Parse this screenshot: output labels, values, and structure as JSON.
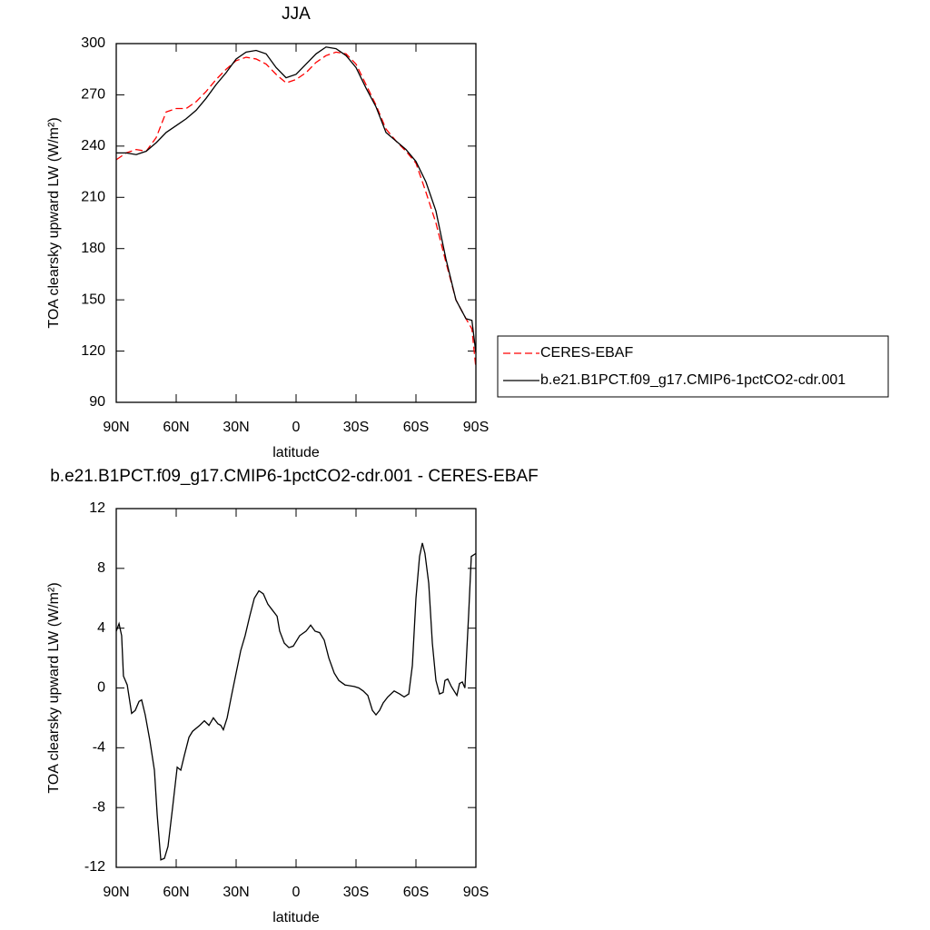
{
  "chart_data": [
    {
      "type": "line",
      "title": "JJA",
      "x_label": "latitude",
      "y_label": "TOA clearsky upward LW (W/m²)",
      "x": [
        90,
        85,
        80,
        75,
        70,
        65,
        60,
        55,
        50,
        45,
        40,
        35,
        30,
        25,
        20,
        15,
        10,
        5,
        0,
        -5,
        -10,
        -15,
        -20,
        -25,
        -30,
        -35,
        -40,
        -45,
        -50,
        -55,
        -60,
        -65,
        -70,
        -75,
        -80,
        -85,
        -88,
        -90
      ],
      "series": [
        {
          "name": "CERES-EBAF",
          "color": "#ff0000",
          "dash": true,
          "values": [
            232,
            236,
            238,
            237,
            245,
            260,
            262,
            262,
            266,
            272,
            279,
            285,
            290,
            292,
            291,
            288,
            282,
            277,
            279,
            283,
            289,
            293,
            295,
            294,
            288,
            276,
            264,
            250,
            243,
            237,
            230,
            213,
            195,
            172,
            150,
            139,
            133,
            110
          ]
        },
        {
          "name": "b.e21.B1PCT.f09_g17.CMIP6-1pctCO2-cdr.001",
          "color": "#000000",
          "dash": false,
          "values": [
            236,
            236,
            235,
            237,
            242,
            248,
            252,
            256,
            261,
            268,
            276,
            283,
            291,
            295,
            296,
            294,
            286,
            280,
            282,
            288,
            294,
            298,
            297,
            293,
            286,
            274,
            263,
            248,
            243,
            238,
            231,
            219,
            202,
            174,
            150,
            139,
            138,
            119
          ]
        }
      ],
      "xlim": [
        90,
        -90
      ],
      "xticks": [
        {
          "value": 90,
          "label": "90N"
        },
        {
          "value": 60,
          "label": "60N"
        },
        {
          "value": 30,
          "label": "30N"
        },
        0,
        {
          "value": -30,
          "label": "30S"
        },
        {
          "value": -60,
          "label": "60S"
        },
        {
          "value": -90,
          "label": "90S"
        }
      ],
      "ylim": [
        90,
        300
      ],
      "yticks": [
        90,
        120,
        150,
        180,
        210,
        240,
        270,
        300
      ],
      "legend": "right"
    },
    {
      "type": "line",
      "title": "b.e21.B1PCT.f09_g17.CMIP6-1pctCO2-cdr.001 - CERES-EBAF",
      "x_label": "latitude",
      "y_label": "TOA clearsky upward LW (W/m²)",
      "x": [
        90,
        88.6,
        87.3,
        86.4,
        84.5,
        82.3,
        80.5,
        78.6,
        77.3,
        75.5,
        73.2,
        70.9,
        69.5,
        67.7,
        65.9,
        64.1,
        61.8,
        59.5,
        57.7,
        55.9,
        53.6,
        51.8,
        48.2,
        45.9,
        43.6,
        41.4,
        39.1,
        37.7,
        36.4,
        34.5,
        32.3,
        30,
        27.7,
        25.5,
        23.2,
        20.9,
        18.6,
        16.4,
        14.1,
        11.8,
        9.5,
        8.2,
        5.9,
        3.6,
        1.4,
        -1.8,
        -5,
        -7.3,
        -9.5,
        -11.8,
        -14.1,
        -16.4,
        -19.1,
        -21.4,
        -24.5,
        -29.1,
        -31.4,
        -33.6,
        -35.9,
        -38.2,
        -40,
        -41.8,
        -43.6,
        -45.9,
        -49.1,
        -51.8,
        -54.1,
        -56.4,
        -58.2,
        -60,
        -61.8,
        -63.2,
        -64.5,
        -66.4,
        -68.2,
        -70,
        -71.8,
        -73.6,
        -74.5,
        -75.9,
        -77.7,
        -79.1,
        -80.5,
        -81.8,
        -83.2,
        -84.5,
        -86.4,
        -87.7,
        -90
      ],
      "values": [
        3.8,
        4.3,
        3.5,
        0.8,
        0.2,
        -1.7,
        -1.5,
        -0.9,
        -0.8,
        -1.8,
        -3.5,
        -5.5,
        -8.5,
        -11.5,
        -11.4,
        -10.6,
        -8,
        -5.3,
        -5.5,
        -4.5,
        -3.3,
        -2.9,
        -2.5,
        -2.2,
        -2.5,
        -2,
        -2.4,
        -2.5,
        -2.8,
        -2,
        -0.5,
        1,
        2.5,
        3.5,
        4.8,
        6,
        6.5,
        6.3,
        5.6,
        5.2,
        4.8,
        3.8,
        3,
        2.7,
        2.8,
        3.5,
        3.8,
        4.2,
        3.8,
        3.7,
        3.2,
        2,
        1,
        0.5,
        0.2,
        0.1,
        0,
        -0.2,
        -0.5,
        -1.5,
        -1.8,
        -1.5,
        -1,
        -0.6,
        -0.2,
        -0.4,
        -0.6,
        -0.4,
        1.5,
        6,
        8.8,
        9.7,
        9,
        7,
        3,
        0.5,
        -0.4,
        -0.3,
        0.5,
        0.6,
        0.1,
        -0.2,
        -0.5,
        0.3,
        0.4,
        0,
        5,
        8.8,
        9
      ],
      "color": "#000000",
      "xlim": [
        90,
        -90
      ],
      "xticks": [
        {
          "value": 90,
          "label": "90N"
        },
        {
          "value": 60,
          "label": "60N"
        },
        {
          "value": 30,
          "label": "30N"
        },
        0,
        {
          "value": -30,
          "label": "30S"
        },
        {
          "value": -60,
          "label": "60S"
        },
        {
          "value": -90,
          "label": "90S"
        }
      ],
      "ylim": [
        -12,
        12
      ],
      "yticks": [
        -12,
        -8,
        -4,
        0,
        4,
        8,
        12
      ]
    }
  ]
}
